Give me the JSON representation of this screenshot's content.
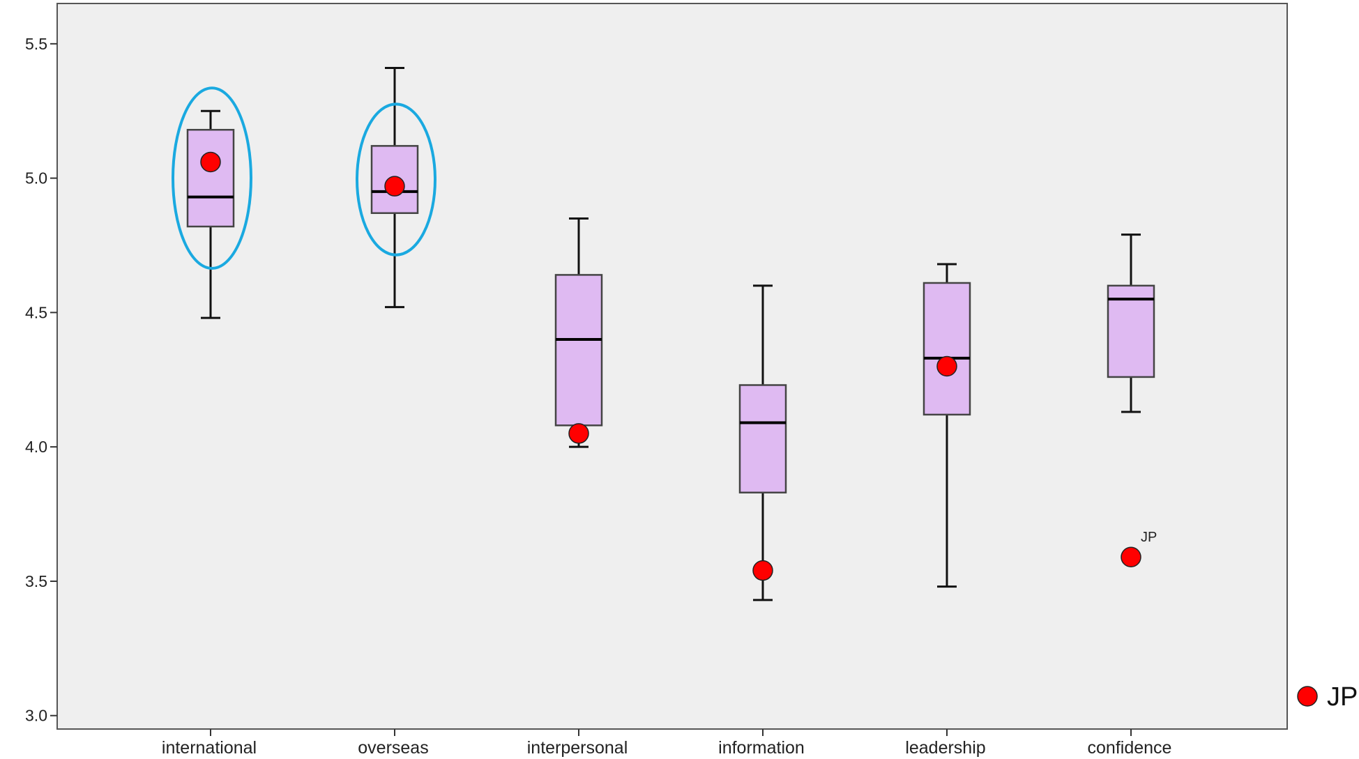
{
  "chart_data": {
    "type": "box",
    "categories": [
      "international",
      "overseas",
      "interpersonal",
      "information",
      "leadership",
      "confidence"
    ],
    "boxes": [
      {
        "category": "international",
        "min": 4.48,
        "q1": 4.82,
        "median": 4.93,
        "q3": 5.18,
        "max": 5.25
      },
      {
        "category": "overseas",
        "min": 4.52,
        "q1": 4.87,
        "median": 4.95,
        "q3": 5.12,
        "max": 5.41
      },
      {
        "category": "interpersonal",
        "min": 4.0,
        "q1": 4.08,
        "median": 4.4,
        "q3": 4.64,
        "max": 4.85
      },
      {
        "category": "information",
        "min": 3.43,
        "q1": 3.83,
        "median": 4.09,
        "q3": 4.23,
        "max": 4.6
      },
      {
        "category": "leadership",
        "min": 3.48,
        "q1": 4.12,
        "median": 4.33,
        "q3": 4.61,
        "max": 4.68
      },
      {
        "category": "confidence",
        "min": 4.13,
        "q1": 4.26,
        "median": 4.55,
        "q3": 4.6,
        "max": 4.79
      }
    ],
    "series": [
      {
        "name": "JP",
        "values": [
          5.06,
          4.97,
          4.05,
          3.54,
          4.3,
          3.59
        ]
      }
    ],
    "point_annotations": [
      {
        "category": "confidence",
        "text": "JP"
      }
    ],
    "highlighted_categories": [
      "international",
      "overseas"
    ],
    "y_ticks": [
      "3.0",
      "3.5",
      "4.0",
      "4.5",
      "5.0",
      "5.5"
    ],
    "y_tick_values": [
      3.0,
      3.5,
      4.0,
      4.5,
      5.0,
      5.5
    ],
    "ylim": [
      2.95,
      5.65
    ],
    "legend": {
      "position": "right-bottom",
      "entries": [
        "JP"
      ]
    },
    "grid": false,
    "colors": {
      "plot_background": "#efefef",
      "box_fill": "#dfbaf2",
      "box_stroke": "#444444",
      "whisker": "#111111",
      "point_fill": "#ff0000",
      "highlight": "#1aa9e0"
    }
  }
}
